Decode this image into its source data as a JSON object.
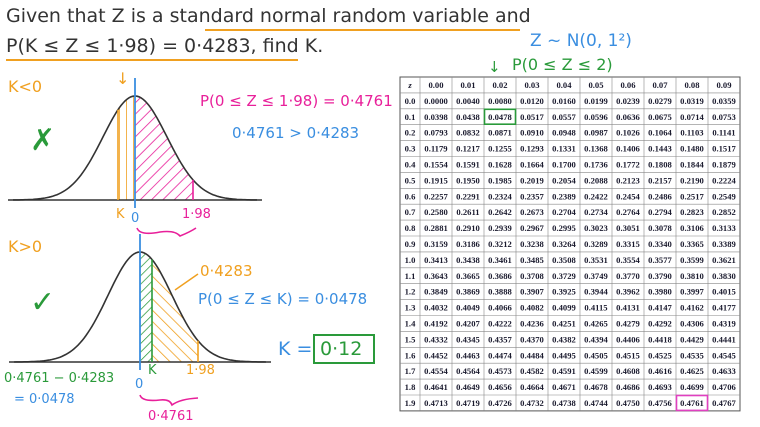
{
  "problem": {
    "line1_start": "Given that Z is a ",
    "line1_emphasis": "standard normal random variable",
    "line1_end": " and",
    "line2_equation": "P(K ≤ Z ≤ 1·98) = 0·4283",
    "line2_end": ", find K."
  },
  "distribution": "Z ~ N(0, 1²)",
  "table_lookup": "P(0 ≤ Z ≤ 2)",
  "case_negative": {
    "label": "K<0",
    "verdict": "✗",
    "probability": "P(0 ≤ Z ≤ 1·98) = 0·4761",
    "comparison": "0·4761 > 0·4283",
    "axis_labels": [
      "K",
      "0",
      "1·98"
    ]
  },
  "case_positive": {
    "label": "K>0",
    "verdict": "✓",
    "region_value": "0·4283",
    "probability": "P(0 ≤ Z ≤ K) = 0·0478",
    "axis_labels": [
      "0",
      "K",
      "1·98"
    ],
    "subtraction": "0·4761 − 0·4283",
    "result": "= 0·0478",
    "bracket_value": "0·4761",
    "answer_prefix": "K =",
    "answer": "0·12"
  },
  "table": {
    "header": [
      "z",
      "0.00",
      "0.01",
      "0.02",
      "0.03",
      "0.04",
      "0.05",
      "0.06",
      "0.07",
      "0.08",
      "0.09"
    ],
    "rows": [
      [
        "0.0",
        "0.0000",
        "0.0040",
        "0.0080",
        "0.0120",
        "0.0160",
        "0.0199",
        "0.0239",
        "0.0279",
        "0.0319",
        "0.0359"
      ],
      [
        "0.1",
        "0.0398",
        "0.0438",
        "0.0478",
        "0.0517",
        "0.0557",
        "0.0596",
        "0.0636",
        "0.0675",
        "0.0714",
        "0.0753"
      ],
      [
        "0.2",
        "0.0793",
        "0.0832",
        "0.0871",
        "0.0910",
        "0.0948",
        "0.0987",
        "0.1026",
        "0.1064",
        "0.1103",
        "0.1141"
      ],
      [
        "0.3",
        "0.1179",
        "0.1217",
        "0.1255",
        "0.1293",
        "0.1331",
        "0.1368",
        "0.1406",
        "0.1443",
        "0.1480",
        "0.1517"
      ],
      [
        "0.4",
        "0.1554",
        "0.1591",
        "0.1628",
        "0.1664",
        "0.1700",
        "0.1736",
        "0.1772",
        "0.1808",
        "0.1844",
        "0.1879"
      ],
      [
        "0.5",
        "0.1915",
        "0.1950",
        "0.1985",
        "0.2019",
        "0.2054",
        "0.2088",
        "0.2123",
        "0.2157",
        "0.2190",
        "0.2224"
      ],
      [
        "0.6",
        "0.2257",
        "0.2291",
        "0.2324",
        "0.2357",
        "0.2389",
        "0.2422",
        "0.2454",
        "0.2486",
        "0.2517",
        "0.2549"
      ],
      [
        "0.7",
        "0.2580",
        "0.2611",
        "0.2642",
        "0.2673",
        "0.2704",
        "0.2734",
        "0.2764",
        "0.2794",
        "0.2823",
        "0.2852"
      ],
      [
        "0.8",
        "0.2881",
        "0.2910",
        "0.2939",
        "0.2967",
        "0.2995",
        "0.3023",
        "0.3051",
        "0.3078",
        "0.3106",
        "0.3133"
      ],
      [
        "0.9",
        "0.3159",
        "0.3186",
        "0.3212",
        "0.3238",
        "0.3264",
        "0.3289",
        "0.3315",
        "0.3340",
        "0.3365",
        "0.3389"
      ],
      [
        "1.0",
        "0.3413",
        "0.3438",
        "0.3461",
        "0.3485",
        "0.3508",
        "0.3531",
        "0.3554",
        "0.3577",
        "0.3599",
        "0.3621"
      ],
      [
        "1.1",
        "0.3643",
        "0.3665",
        "0.3686",
        "0.3708",
        "0.3729",
        "0.3749",
        "0.3770",
        "0.3790",
        "0.3810",
        "0.3830"
      ],
      [
        "1.2",
        "0.3849",
        "0.3869",
        "0.3888",
        "0.3907",
        "0.3925",
        "0.3944",
        "0.3962",
        "0.3980",
        "0.3997",
        "0.4015"
      ],
      [
        "1.3",
        "0.4032",
        "0.4049",
        "0.4066",
        "0.4082",
        "0.4099",
        "0.4115",
        "0.4131",
        "0.4147",
        "0.4162",
        "0.4177"
      ],
      [
        "1.4",
        "0.4192",
        "0.4207",
        "0.4222",
        "0.4236",
        "0.4251",
        "0.4265",
        "0.4279",
        "0.4292",
        "0.4306",
        "0.4319"
      ],
      [
        "1.5",
        "0.4332",
        "0.4345",
        "0.4357",
        "0.4370",
        "0.4382",
        "0.4394",
        "0.4406",
        "0.4418",
        "0.4429",
        "0.4441"
      ],
      [
        "1.6",
        "0.4452",
        "0.4463",
        "0.4474",
        "0.4484",
        "0.4495",
        "0.4505",
        "0.4515",
        "0.4525",
        "0.4535",
        "0.4545"
      ],
      [
        "1.7",
        "0.4554",
        "0.4564",
        "0.4573",
        "0.4582",
        "0.4591",
        "0.4599",
        "0.4608",
        "0.4616",
        "0.4625",
        "0.4633"
      ],
      [
        "1.8",
        "0.4641",
        "0.4649",
        "0.4656",
        "0.4664",
        "0.4671",
        "0.4678",
        "0.4686",
        "0.4693",
        "0.4699",
        "0.4706"
      ],
      [
        "1.9",
        "0.4713",
        "0.4719",
        "0.4726",
        "0.4732",
        "0.4738",
        "0.4744",
        "0.4750",
        "0.4756",
        "0.4761",
        "0.4767"
      ]
    ]
  }
}
